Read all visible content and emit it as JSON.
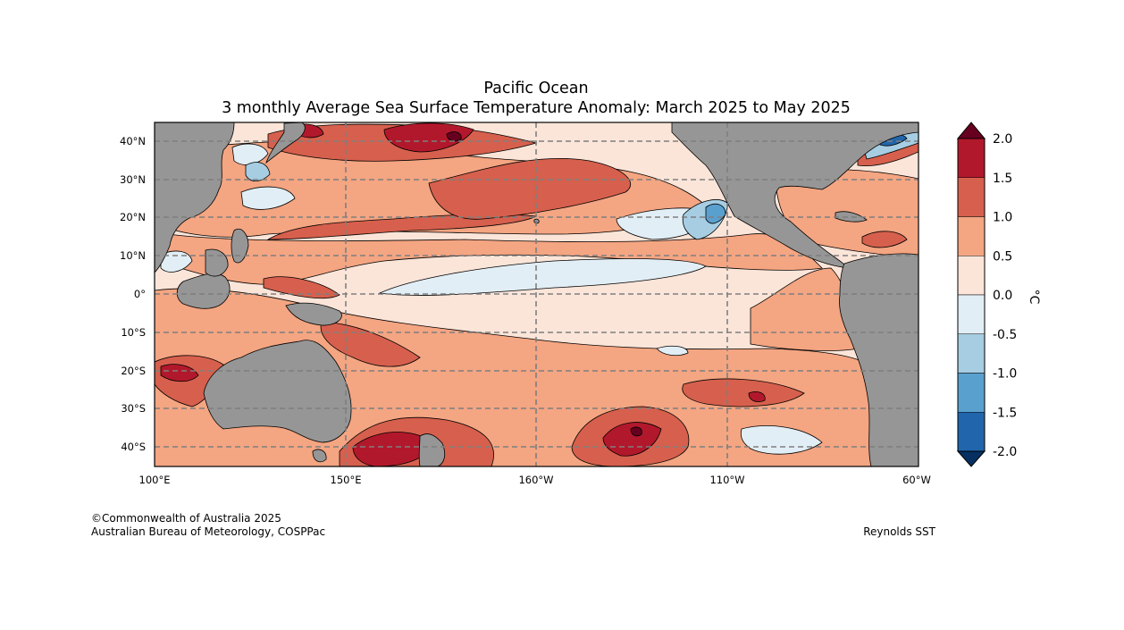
{
  "title": {
    "line1": "Pacific Ocean",
    "line2": "3 monthly Average Sea Surface Temperature Anomaly: March 2025 to May 2025"
  },
  "map": {
    "region": "Pacific Ocean",
    "lon_labels": [
      "100°E",
      "150°E",
      "160°W",
      "110°W",
      "60°W"
    ],
    "lat_labels": [
      "40°N",
      "30°N",
      "20°N",
      "10°N",
      "0°",
      "10°S",
      "20°S",
      "30°S",
      "40°S"
    ],
    "land_color": "#969696"
  },
  "colorbar": {
    "unit": "°C",
    "tick_labels": [
      "2.0",
      "1.5",
      "1.0",
      "0.5",
      "0.0",
      "-0.5",
      "-1.0",
      "-1.5",
      "-2.0"
    ],
    "colors": [
      "#b2182b",
      "#d6604d",
      "#f4a582",
      "#fbe5d9",
      "#e2eef5",
      "#a6cde2",
      "#5aa0cf",
      "#2166ac"
    ],
    "extend_high_color": "#67001f",
    "extend_low_color": "#053061"
  },
  "credits": {
    "copyright": "©Commonwealth of Australia 2025",
    "agency": "Australian Bureau of Meteorology, COSPPac",
    "source": "Reynolds SST"
  }
}
